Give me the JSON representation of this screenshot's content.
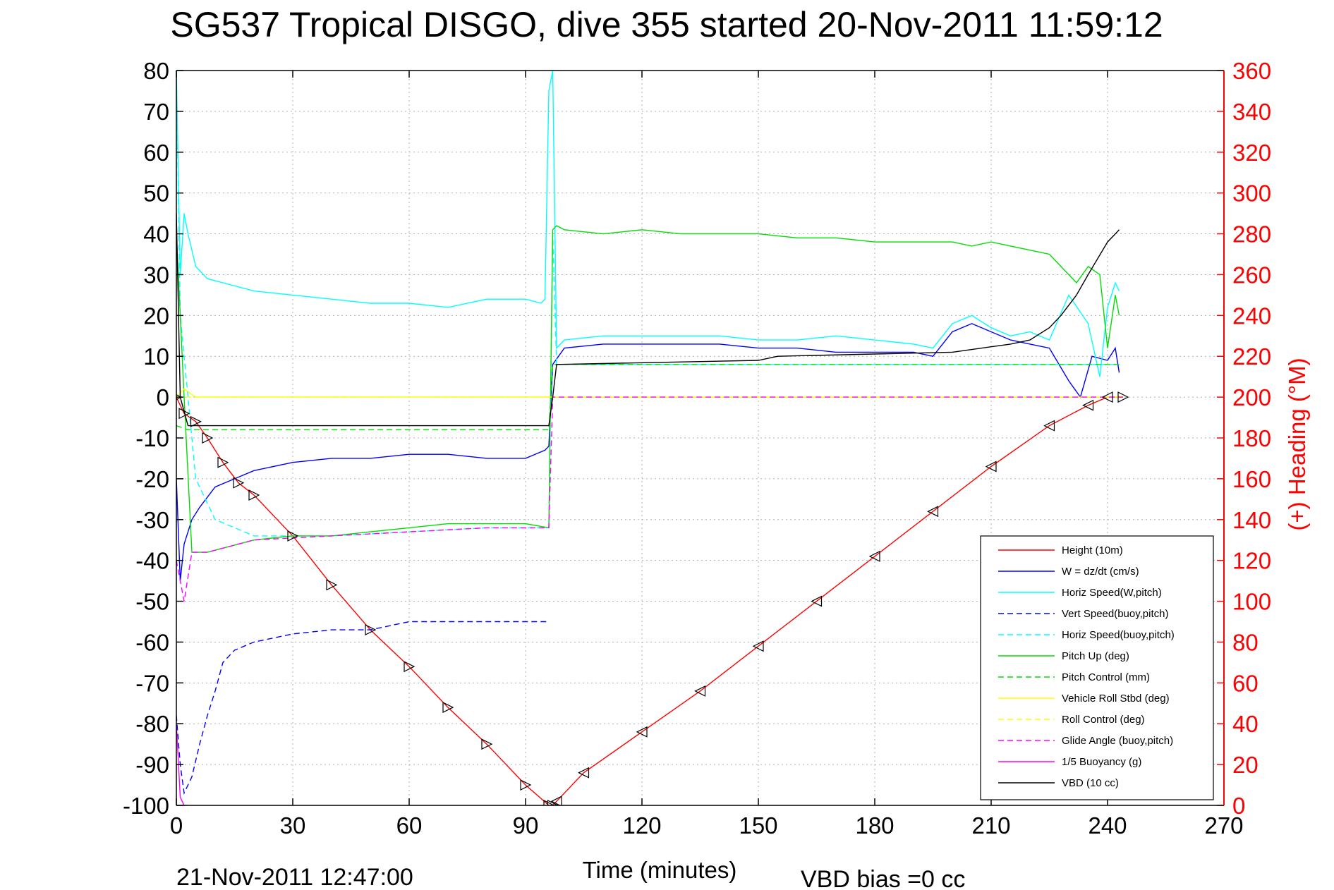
{
  "chart_data": {
    "type": "line",
    "title": "SG537 Tropical DISGO, dive 355 started 20-Nov-2011 11:59:12",
    "xlabel": "Time (minutes)",
    "ylabel": "",
    "y2label": "(+) Heading (°M)",
    "xlim": [
      0,
      270
    ],
    "ylim": [
      -100,
      80
    ],
    "y2lim": [
      0,
      360
    ],
    "xticks": [
      "0",
      "30",
      "60",
      "90",
      "120",
      "150",
      "180",
      "210",
      "240",
      "270"
    ],
    "yticks": [
      "80",
      "70",
      "60",
      "50",
      "40",
      "30",
      "20",
      "10",
      "0",
      "-10",
      "-20",
      "-30",
      "-40",
      "-50",
      "-60",
      "-70",
      "-80",
      "-90",
      "-100"
    ],
    "y2ticks": [
      "360",
      "340",
      "320",
      "300",
      "280",
      "260",
      "240",
      "220",
      "200",
      "180",
      "160",
      "140",
      "120",
      "100",
      "80",
      "60",
      "40",
      "20",
      "0"
    ],
    "grid": true,
    "legend_position": "lower-right",
    "footer_left": "21-Nov-2011 12:47:00",
    "footer_right": "VBD bias =0 cc",
    "colors": {
      "left_axis": "#000000",
      "right_axis": "#ff0000",
      "grid": "#b0b0b0"
    },
    "series": [
      {
        "name": "Height (10m)",
        "color": "#ff0000",
        "dash": "solid",
        "x": [
          0,
          2,
          5,
          8,
          12,
          16,
          20,
          30,
          40,
          50,
          60,
          70,
          80,
          90,
          96,
          97,
          98,
          105,
          120,
          135,
          150,
          165,
          180,
          195,
          210,
          225,
          235,
          240,
          244
        ],
        "y": [
          0,
          -4,
          -6,
          -10,
          -16,
          -21,
          -24,
          -34,
          -46,
          -57,
          -66,
          -76,
          -85,
          -95,
          -100,
          -100,
          -99,
          -92,
          -82,
          -72,
          -61,
          -50,
          -39,
          -28,
          -17,
          -7,
          -2,
          0,
          0
        ]
      },
      {
        "name": "W = dz/dt (cm/s)",
        "color": "#0000ff",
        "dash": "solid",
        "x": [
          0,
          1,
          2,
          4,
          6,
          10,
          15,
          20,
          30,
          40,
          50,
          60,
          70,
          80,
          90,
          95,
          96,
          97,
          100,
          110,
          120,
          130,
          140,
          150,
          160,
          170,
          180,
          190,
          195,
          200,
          205,
          210,
          215,
          220,
          225,
          230,
          233,
          236,
          240,
          242,
          243
        ],
        "y": [
          -20,
          -45,
          -36,
          -30,
          -27,
          -22,
          -20,
          -18,
          -16,
          -15,
          -15,
          -14,
          -14,
          -15,
          -15,
          -13,
          -12,
          8,
          12,
          13,
          13,
          13,
          13,
          12,
          12,
          11,
          11,
          11,
          10,
          16,
          18,
          16,
          14,
          13,
          12,
          4,
          0,
          10,
          9,
          12,
          6
        ]
      },
      {
        "name": "Horiz Speed(W,pitch)",
        "color": "#00ffff",
        "dash": "solid",
        "x": [
          0,
          1,
          2,
          3,
          5,
          8,
          12,
          20,
          30,
          40,
          50,
          60,
          70,
          80,
          90,
          94,
          95,
          96,
          97,
          98,
          100,
          110,
          120,
          130,
          140,
          150,
          160,
          170,
          180,
          190,
          195,
          200,
          205,
          210,
          215,
          220,
          225,
          230,
          235,
          238,
          240,
          242,
          243
        ],
        "y": [
          80,
          30,
          45,
          40,
          32,
          29,
          28,
          26,
          25,
          24,
          23,
          23,
          22,
          24,
          24,
          23,
          24,
          75,
          80,
          12,
          14,
          15,
          15,
          15,
          15,
          14,
          14,
          15,
          14,
          13,
          12,
          18,
          20,
          17,
          15,
          16,
          14,
          25,
          18,
          5,
          22,
          28,
          26
        ]
      },
      {
        "name": "Vert Speed(buoy,pitch)",
        "color": "#0000ff",
        "dash": "dashed",
        "x": [
          0,
          1,
          2,
          4,
          6,
          8,
          10,
          12,
          15,
          20,
          25,
          30,
          40,
          50,
          60,
          70,
          80,
          90,
          95,
          96
        ],
        "y": [
          -78,
          -90,
          -97,
          -93,
          -85,
          -78,
          -72,
          -65,
          -62,
          -60,
          -59,
          -58,
          -57,
          -57,
          -55,
          -55,
          -55,
          -55,
          -55,
          -55
        ]
      },
      {
        "name": "Horiz Speed(buoy,pitch)",
        "color": "#00ffff",
        "dash": "dashed",
        "x": [
          0,
          1,
          2,
          3,
          5,
          10,
          20,
          40,
          60,
          80,
          96,
          97,
          98,
          120,
          150,
          180,
          210,
          240,
          243
        ],
        "y": [
          80,
          20,
          10,
          0,
          -20,
          -30,
          -34,
          -34,
          -33,
          -32,
          -32,
          40,
          8,
          8,
          8,
          8,
          8,
          8,
          8
        ]
      },
      {
        "name": "Pitch Up (deg)",
        "color": "#00dd00",
        "dash": "solid",
        "x": [
          0,
          2,
          4,
          8,
          12,
          20,
          30,
          40,
          50,
          60,
          70,
          80,
          90,
          96,
          97,
          98,
          100,
          110,
          120,
          130,
          140,
          150,
          160,
          170,
          180,
          190,
          200,
          205,
          210,
          215,
          220,
          225,
          228,
          230,
          232,
          235,
          238,
          240,
          242,
          243
        ],
        "y": [
          40,
          0,
          -38,
          -38,
          -37,
          -35,
          -34,
          -34,
          -33,
          -32,
          -31,
          -31,
          -31,
          -32,
          41,
          42,
          41,
          40,
          41,
          40,
          40,
          40,
          39,
          39,
          38,
          38,
          38,
          37,
          38,
          37,
          36,
          35,
          32,
          30,
          28,
          32,
          30,
          12,
          25,
          20
        ]
      },
      {
        "name": "Pitch Control (mm)",
        "color": "#00dd00",
        "dash": "dashed",
        "x": [
          0,
          3,
          96,
          97,
          243
        ],
        "y": [
          -7,
          -8,
          -8,
          8,
          8
        ]
      },
      {
        "name": "Vehicle Roll Stbd (deg)",
        "color": "#ffff00",
        "dash": "solid",
        "x": [
          0,
          2,
          5,
          10,
          15,
          20,
          30,
          40,
          50,
          60,
          70,
          80,
          90,
          96,
          97,
          100,
          120,
          150,
          180,
          210,
          230,
          240,
          243
        ],
        "y": [
          0,
          2,
          0,
          0,
          0,
          0,
          0,
          0,
          0,
          0,
          0,
          0,
          0,
          0,
          0,
          0,
          0,
          0,
          0,
          0,
          0,
          0,
          0
        ]
      },
      {
        "name": "Roll Control (deg)",
        "color": "#ffff00",
        "dash": "dashed",
        "x": [
          0,
          243
        ],
        "y": [
          0,
          0
        ]
      },
      {
        "name": "Glide Angle (buoy,pitch)",
        "color": "#ff00ff",
        "dash": "dashed",
        "x": [
          0,
          2,
          4,
          8,
          12,
          20,
          40,
          60,
          80,
          96,
          97,
          243
        ],
        "y": [
          -40,
          -50,
          -38,
          -38,
          -37,
          -35,
          -34,
          -33,
          -32,
          -32,
          0,
          0
        ]
      },
      {
        "name": "1/5 Buoyancy (g)",
        "color": "#ff00ff",
        "dash": "solid",
        "x": [
          0,
          1,
          2,
          3
        ],
        "y": [
          -80,
          -98,
          -100,
          -100
        ]
      },
      {
        "name": "VBD (10 cc)",
        "color": "#000000",
        "dash": "solid",
        "x": [
          0,
          1,
          3,
          10,
          40,
          96,
          97,
          98,
          150,
          155,
          200,
          215,
          220,
          225,
          228,
          232,
          235,
          240,
          242,
          243
        ],
        "y": [
          45,
          0,
          -7,
          -7,
          -7,
          -7,
          0,
          8,
          9,
          10,
          11,
          13,
          14,
          17,
          20,
          25,
          30,
          38,
          40,
          41
        ]
      }
    ]
  }
}
